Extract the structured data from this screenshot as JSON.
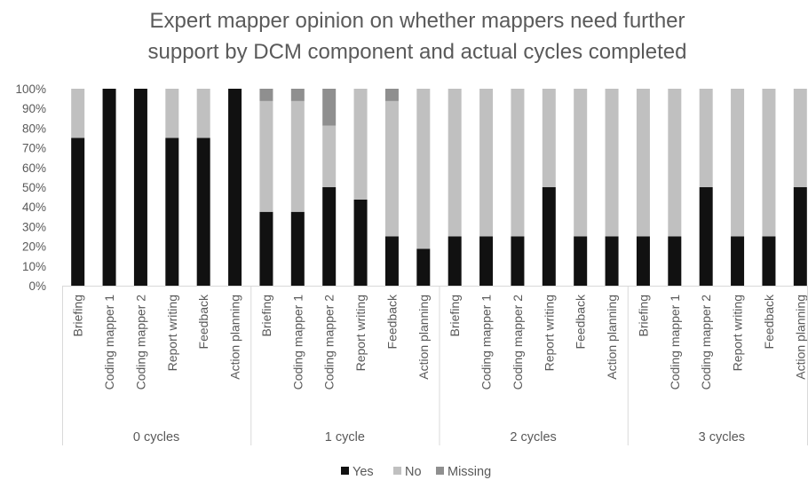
{
  "chart_data": {
    "type": "bar",
    "stacked": true,
    "title_lines": [
      "Expert mapper opinion on whether mappers need further",
      "support by DCM component and actual cycles completed"
    ],
    "y_axis": {
      "min": 0,
      "max": 100,
      "ticks": [
        "0%",
        "10%",
        "20%",
        "30%",
        "40%",
        "50%",
        "60%",
        "70%",
        "80%",
        "90%",
        "100%"
      ]
    },
    "gridlines": false,
    "groups": [
      {
        "label": "0 cycles",
        "categories": [
          "Briefing",
          "Coding mapper 1",
          "Coding mapper 2",
          "Report writing",
          "Feedback",
          "Action planning"
        ],
        "yes": [
          75,
          100,
          100,
          75,
          75,
          100
        ],
        "no": [
          25,
          0,
          0,
          25,
          25,
          0
        ],
        "missing": [
          0,
          0,
          0,
          0,
          0,
          0
        ]
      },
      {
        "label": "1 cycle",
        "categories": [
          "Briefing",
          "Coding mapper 1",
          "Coding mapper 2",
          "Report writing",
          "Feedback",
          "Action planning"
        ],
        "yes": [
          37.5,
          37.5,
          50,
          43.75,
          25,
          18.75
        ],
        "no": [
          56.25,
          56.25,
          31.25,
          56.25,
          68.75,
          81.25
        ],
        "missing": [
          6.25,
          6.25,
          18.75,
          0,
          6.25,
          0
        ]
      },
      {
        "label": "2 cycles",
        "categories": [
          "Briefing",
          "Coding mapper 1",
          "Coding mapper 2",
          "Report writing",
          "Feedback",
          "Action planning"
        ],
        "yes": [
          25,
          25,
          25,
          50,
          25,
          25
        ],
        "no": [
          75,
          75,
          75,
          50,
          75,
          75
        ],
        "missing": [
          0,
          0,
          0,
          0,
          0,
          0
        ]
      },
      {
        "label": "3 cycles",
        "categories": [
          "Briefing",
          "Coding mapper 1",
          "Coding mapper 2",
          "Report writing",
          "Feedback",
          "Action planning"
        ],
        "yes": [
          25,
          25,
          50,
          25,
          25,
          50
        ],
        "no": [
          75,
          75,
          50,
          75,
          75,
          50
        ],
        "missing": [
          0,
          0,
          0,
          0,
          0,
          0
        ]
      }
    ],
    "series": [
      {
        "key": "yes",
        "name": "Yes",
        "color": "#111111"
      },
      {
        "key": "no",
        "name": "No",
        "color": "#c0c0c0"
      },
      {
        "key": "missing",
        "name": "Missing",
        "color": "#8f8f8f"
      }
    ],
    "legend_position": "bottom"
  }
}
